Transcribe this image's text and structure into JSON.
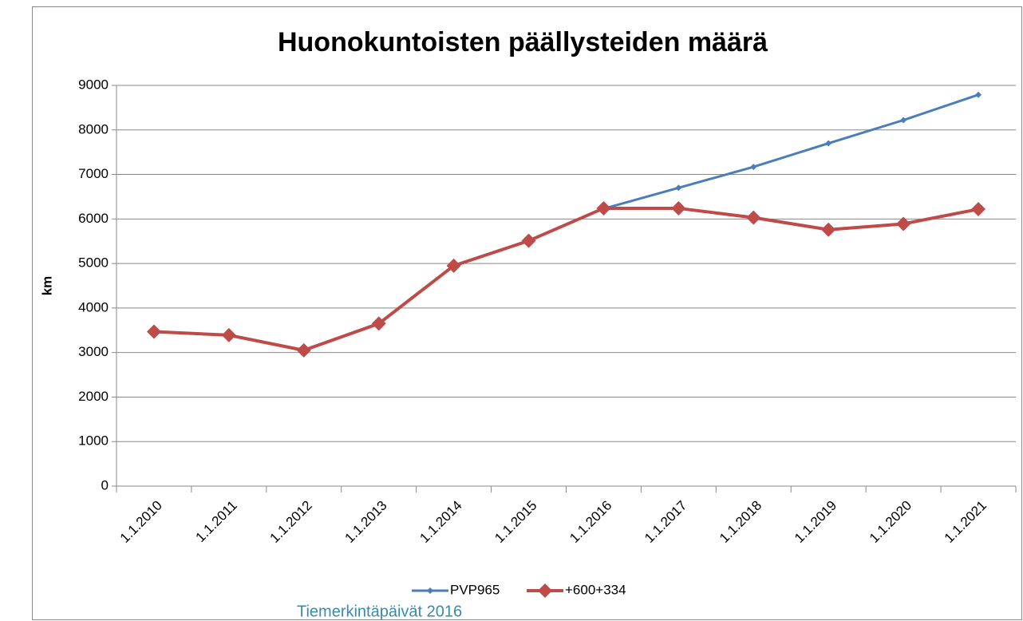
{
  "chart_data": {
    "type": "line",
    "title": "Huonokuntoisten päällysteiden määrä",
    "y_label": "km",
    "categories": [
      "1.1.2010",
      "1.1.2011",
      "1.1.2012",
      "1.1.2013",
      "1.1.2014",
      "1.1.2015",
      "1.1.2016",
      "1.1.2017",
      "1.1.2018",
      "1.1.2019",
      "1.1.2020",
      "1.1.2021"
    ],
    "series": [
      {
        "name": "PVP965",
        "color": "#4a7ebb",
        "values": [
          null,
          null,
          null,
          null,
          null,
          null,
          6230,
          6700,
          7170,
          7700,
          8220,
          8790
        ]
      },
      {
        "name": "+600+334",
        "color": "#be4b48",
        "values": [
          3470,
          3390,
          3050,
          3650,
          4950,
          5510,
          6240,
          6240,
          6030,
          5760,
          5890,
          6220
        ]
      }
    ],
    "ylim": [
      0,
      9000
    ],
    "yticks": [
      0,
      1000,
      2000,
      3000,
      4000,
      5000,
      6000,
      7000,
      8000,
      9000
    ],
    "grid": true,
    "legend": "bottom"
  },
  "footer": "Tiemerkintäpäivät 2016"
}
